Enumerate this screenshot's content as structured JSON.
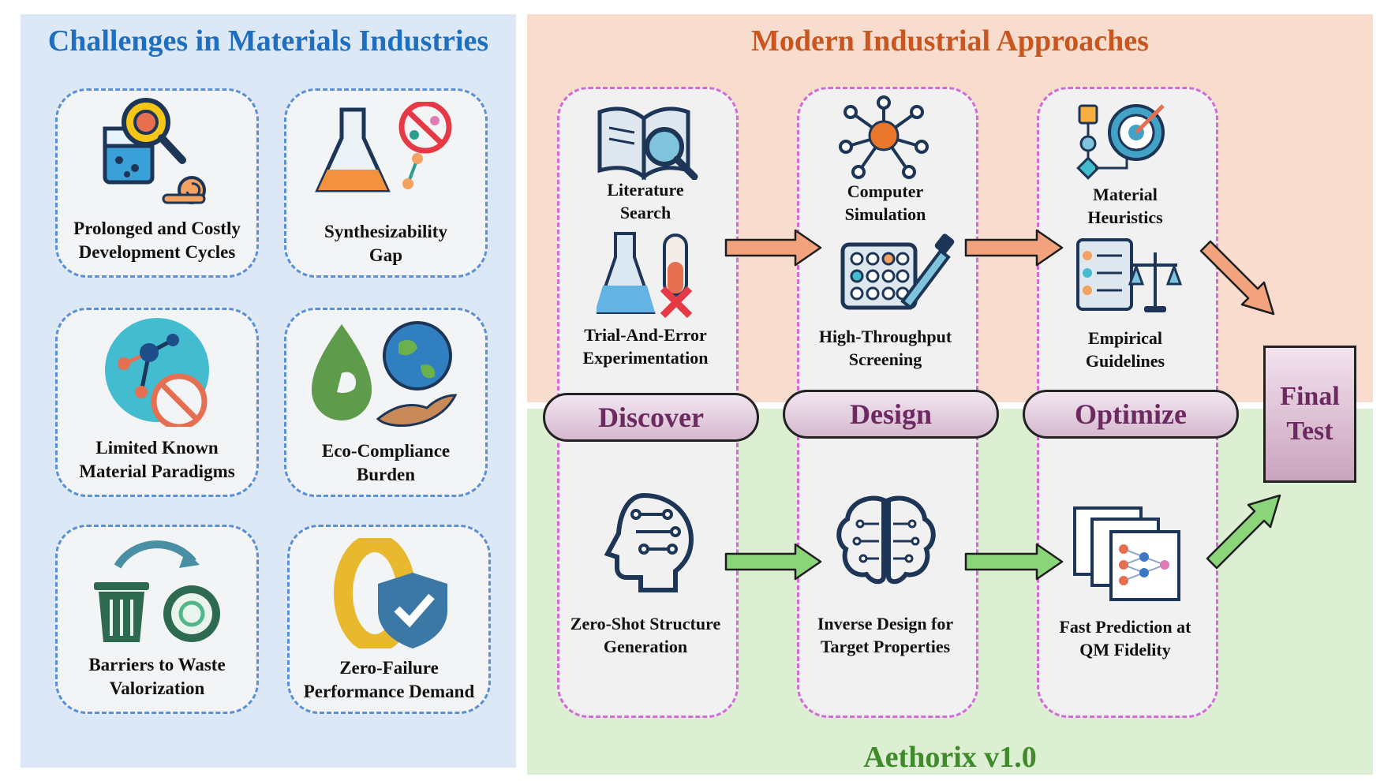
{
  "left_panel": {
    "title": "Challenges in Materials Industries",
    "cards": [
      {
        "line1": "Prolonged and Costly",
        "line2": "Development Cycles",
        "icon": "magnifier-beaker-snail-icon"
      },
      {
        "line1": "Synthesizability",
        "line2": "Gap",
        "icon": "flask-prohibited-molecule-icon"
      },
      {
        "line1": "Limited Known",
        "line2": "Material Paradigms",
        "icon": "molecule-prohibited-icon"
      },
      {
        "line1": "Eco-Compliance",
        "line2": "Burden",
        "icon": "leaf-earth-hand-icon"
      },
      {
        "line1": "Barriers to Waste",
        "line2": "Valorization",
        "icon": "trash-recycle-gear-icon"
      },
      {
        "line1": "Zero-Failure",
        "line2": "Performance Demand",
        "icon": "zero-shield-check-icon"
      }
    ]
  },
  "right_panel": {
    "title": "Modern Industrial Approaches",
    "bottom_title": "Aethorix v1.0",
    "stages": [
      "Discover",
      "Design",
      "Optimize"
    ],
    "final": {
      "line1": "Final",
      "line2": "Test"
    },
    "top_items": [
      {
        "line1": "Literature",
        "line2": "Search"
      },
      {
        "line1": "Trial-And-Error",
        "line2": "Experimentation"
      },
      {
        "line1": "Computer",
        "line2": "Simulation"
      },
      {
        "line1": "High-Throughput",
        "line2": "Screening"
      },
      {
        "line1": "Material",
        "line2": "Heuristics"
      },
      {
        "line1": "Empirical",
        "line2": "Guidelines"
      }
    ],
    "bottom_items": [
      {
        "line1": "Zero-Shot Structure",
        "line2": "Generation"
      },
      {
        "line1": "Inverse Design for",
        "line2": "Target Properties"
      },
      {
        "line1": "Fast Prediction at",
        "line2": "QM Fidelity"
      }
    ]
  },
  "colors": {
    "left_bg": "#dce8f5",
    "top_right_bg": "#f8dccd",
    "bottom_right_bg": "#dcefd2",
    "left_title": "#1f6fc1",
    "right_title": "#c8561e",
    "bottom_title": "#3f8a2a",
    "stage_text": "#6d2a61",
    "arrow_orange": "#f2a27c",
    "arrow_green": "#8ad47a"
  }
}
